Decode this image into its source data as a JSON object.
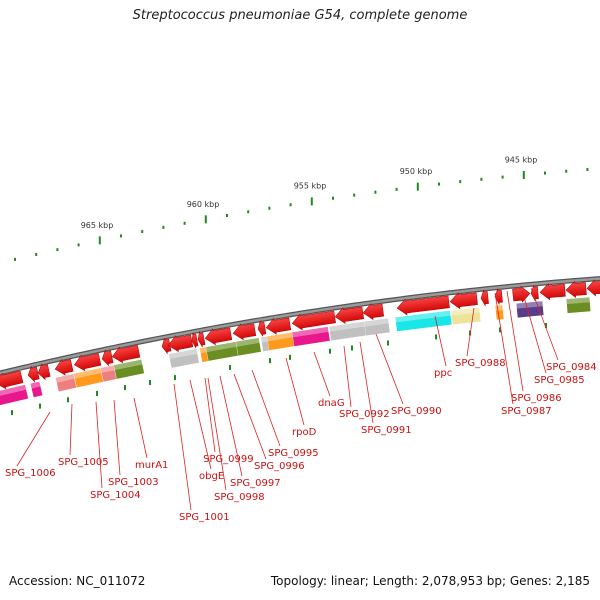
{
  "title": "Streptococcus pneumoniae G54, complete genome",
  "footer": {
    "accession": "Accession: NC_011072",
    "stats": "Topology: linear; Length: 2,078,953 bp; Genes: 2,185"
  },
  "scale_ticks": [
    {
      "label": "965 kbp"
    },
    {
      "label": "960 kbp"
    },
    {
      "label": "955 kbp"
    },
    {
      "label": "950 kbp"
    },
    {
      "label": "945 kbp"
    }
  ],
  "gene_labels": [
    {
      "name": "SPG_1006"
    },
    {
      "name": "SPG_1005"
    },
    {
      "name": "SPG_1004"
    },
    {
      "name": "SPG_1003"
    },
    {
      "name": "murA1"
    },
    {
      "name": "SPG_1001"
    },
    {
      "name": "obgE"
    },
    {
      "name": "SPG_0999"
    },
    {
      "name": "SPG_0998"
    },
    {
      "name": "SPG_0997"
    },
    {
      "name": "SPG_0996"
    },
    {
      "name": "SPG_0995"
    },
    {
      "name": "rpoD"
    },
    {
      "name": "dnaG"
    },
    {
      "name": "SPG_0992"
    },
    {
      "name": "SPG_0991"
    },
    {
      "name": "SPG_0990"
    },
    {
      "name": "ppc"
    },
    {
      "name": "SPG_0988"
    },
    {
      "name": "SPG_0987"
    },
    {
      "name": "SPG_0986"
    },
    {
      "name": "SPG_0985"
    },
    {
      "name": "SPG_0984"
    }
  ],
  "colors": {
    "backbone": "#7a7a7a",
    "gene_arrow": "#e00000",
    "tick": "#1f8a1f",
    "label": "#cc1111",
    "label_line": "#dd2222",
    "magenta": "#e8178c",
    "salmon": "#ee7f7f",
    "orange": "#ff9a1f",
    "olive": "#6b8e23",
    "gray": "#c0c0c0",
    "cyan": "#19e6e6",
    "khaki": "#eee39a",
    "purple": "#5a3c8a"
  }
}
